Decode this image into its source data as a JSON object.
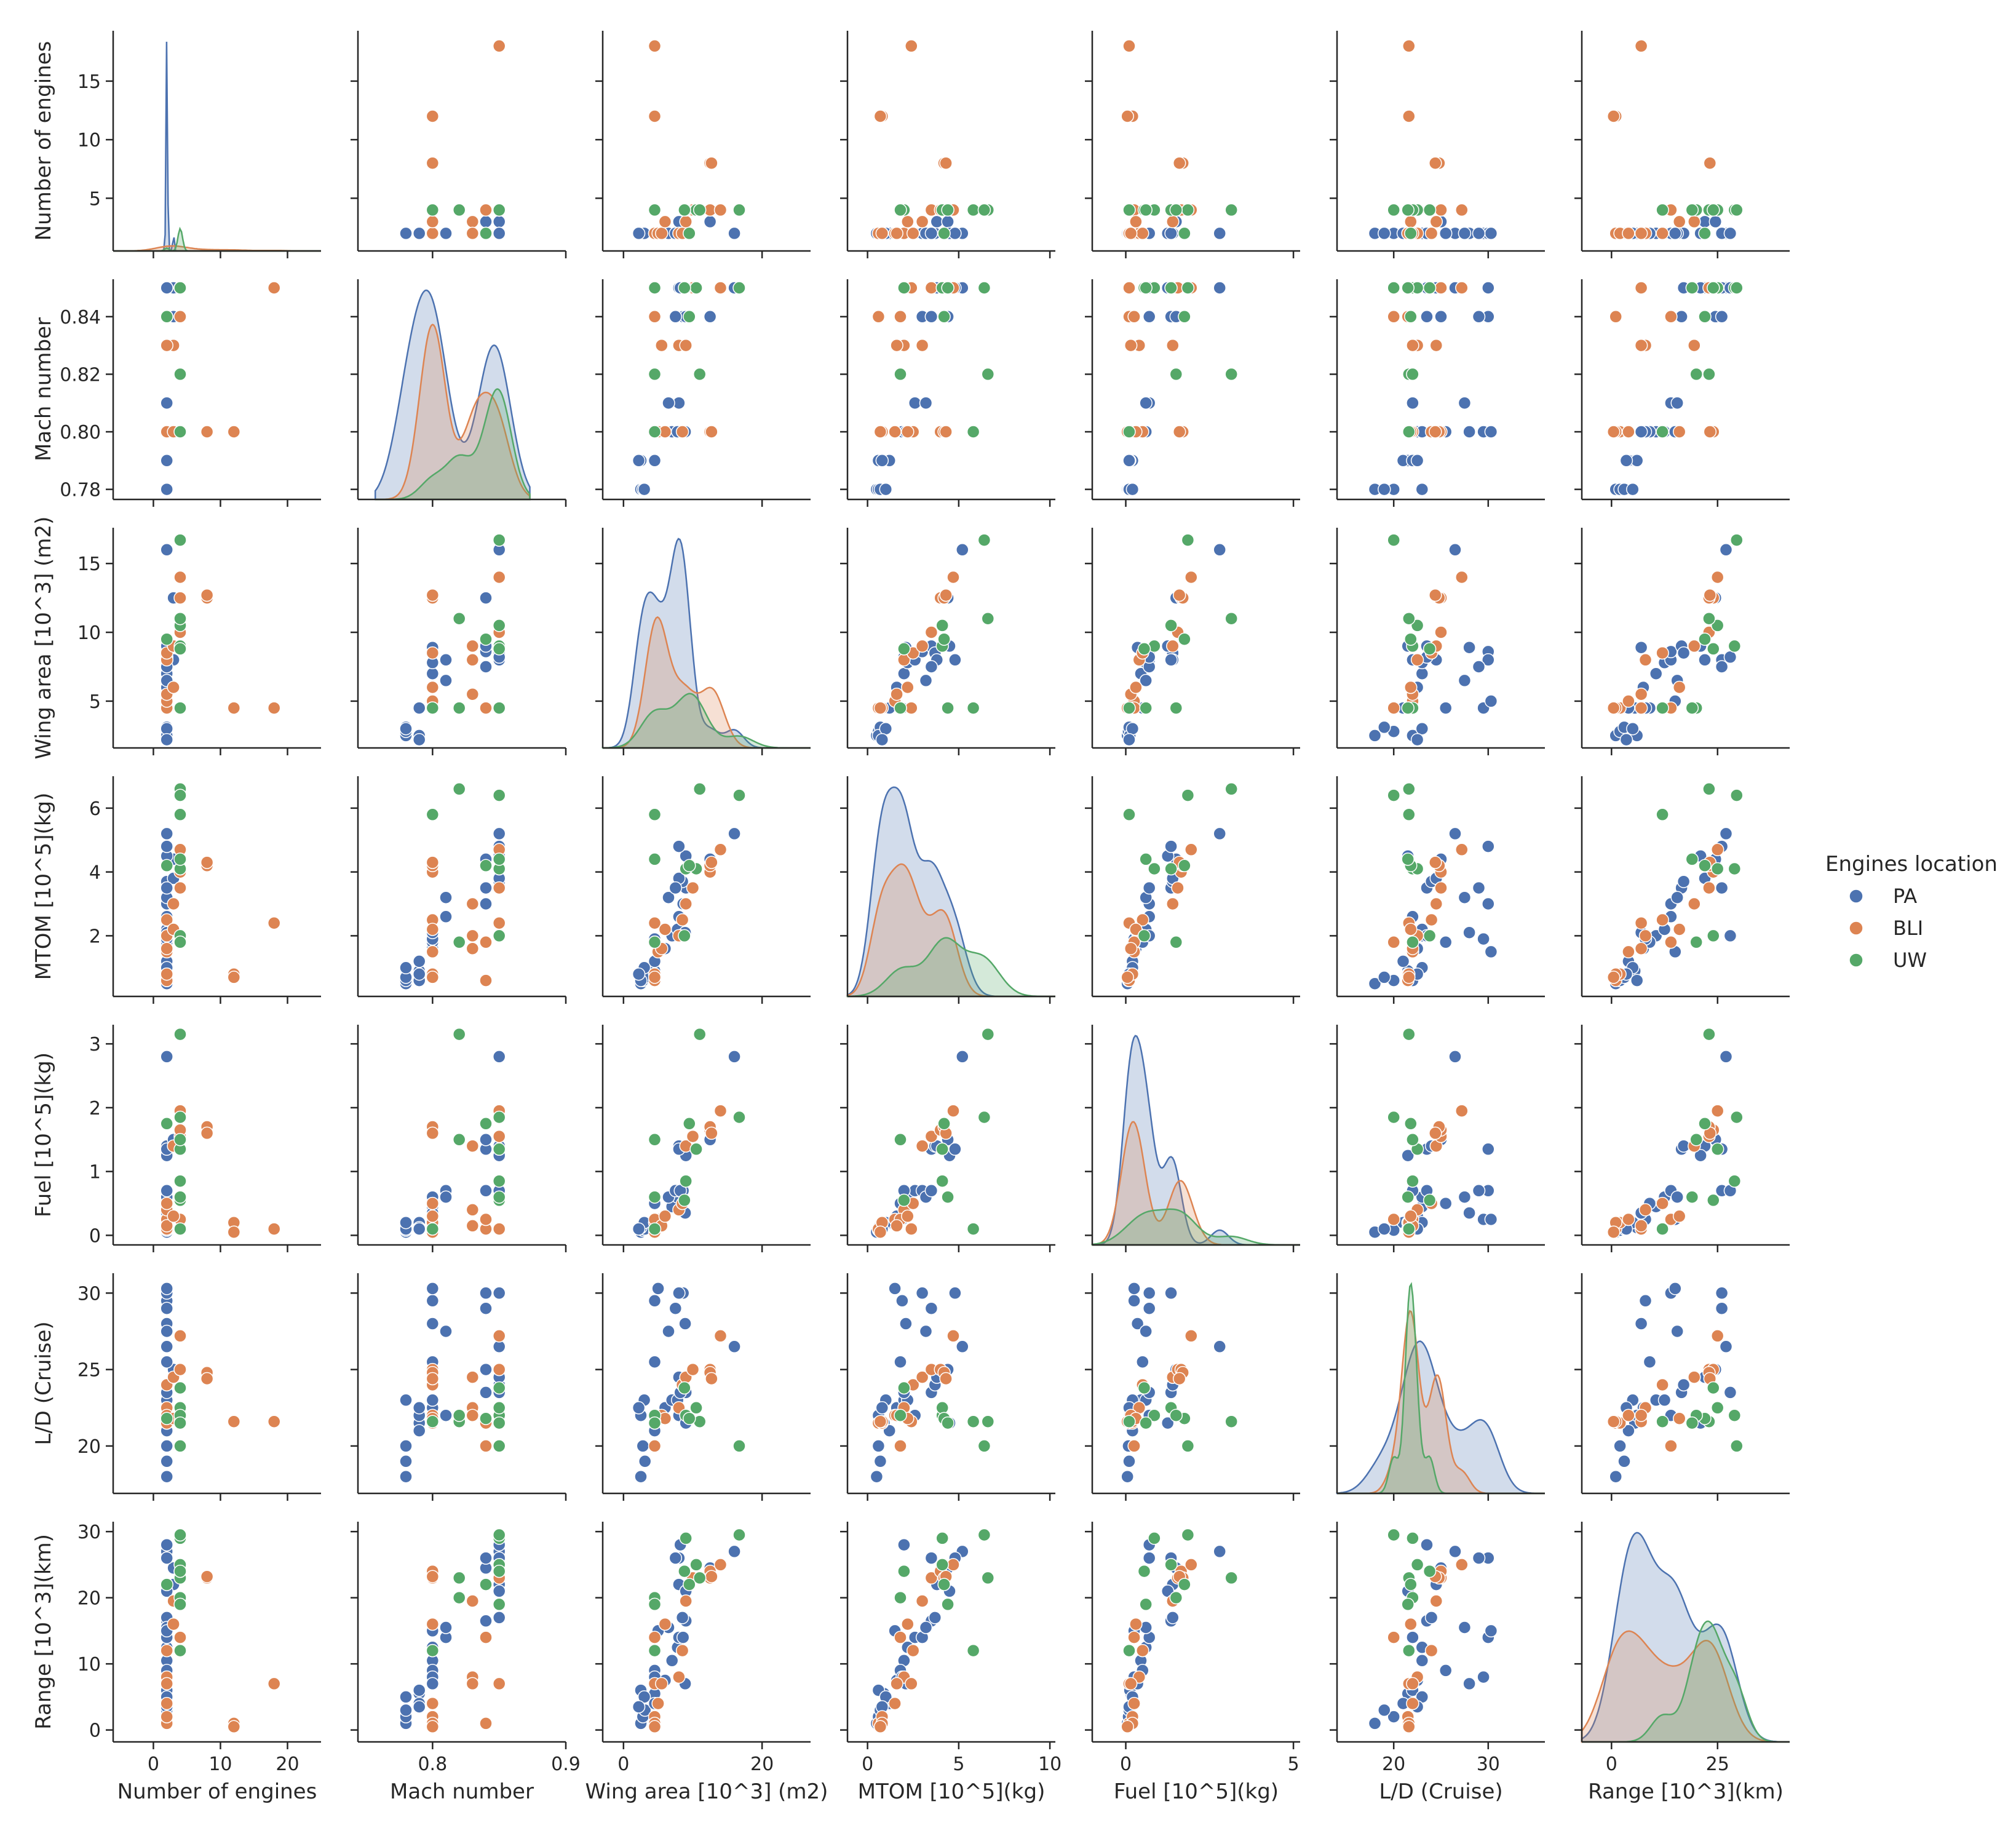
{
  "chart_data": {
    "type": "scatter",
    "title": "",
    "variables": [
      {
        "key": "engines",
        "label": "Number of engines",
        "range": [
          -6,
          25
        ],
        "ticks": [
          0,
          10,
          20
        ],
        "tick_labels": [
          "0",
          "10",
          "20"
        ],
        "kde_range": [
          -6,
          25
        ]
      },
      {
        "key": "mach",
        "label": "Mach number",
        "range": [
          0.744,
          0.9
        ],
        "ticks": [
          0.8,
          0.9
        ],
        "tick_labels": [
          "0.8",
          "0.9"
        ],
        "kde_range": [
          0.757,
          0.873
        ]
      },
      {
        "key": "wing",
        "label": "Wing area [10^3] (m2)",
        "range": [
          -3,
          27
        ],
        "ticks": [
          0,
          20
        ],
        "tick_labels": [
          "0",
          "20"
        ],
        "kde_range": [
          -3,
          27
        ]
      },
      {
        "key": "mtom",
        "label": "MTOM [10^5](kg)",
        "range": [
          -1.1,
          10.3
        ],
        "ticks": [
          0,
          5,
          10
        ],
        "tick_labels": [
          "0",
          "5",
          "10"
        ],
        "kde_range": [
          -1.1,
          10.3
        ]
      },
      {
        "key": "fuel",
        "label": "Fuel [10^5](kg)",
        "range": [
          -1.0,
          5.2
        ],
        "ticks": [
          0,
          5
        ],
        "tick_labels": [
          "0",
          "5"
        ],
        "kde_range": [
          -1.0,
          5.2
        ]
      },
      {
        "key": "ld",
        "label": "L/D (Cruise)",
        "range": [
          14,
          36
        ],
        "ticks": [
          20,
          30
        ],
        "tick_labels": [
          "20",
          "30"
        ],
        "kde_range": [
          14,
          36
        ]
      },
      {
        "key": "range",
        "label": "Range [10^3](km)",
        "range": [
          -7,
          42
        ],
        "ticks": [
          0,
          25
        ],
        "tick_labels": [
          "0",
          "25"
        ],
        "kde_range": [
          -7,
          42
        ]
      }
    ],
    "yaxes": [
      {
        "range": [
          0.5,
          19.3
        ],
        "ticks": [
          5,
          10,
          15
        ],
        "tick_labels": [
          "5",
          "10",
          "15"
        ]
      },
      {
        "range": [
          0.7765,
          0.853
        ],
        "ticks": [
          0.78,
          0.8,
          0.82,
          0.84
        ],
        "tick_labels": [
          "0.78",
          "0.80",
          "0.82",
          "0.84"
        ]
      },
      {
        "range": [
          1.6,
          17.6
        ],
        "ticks": [
          5,
          10,
          15
        ],
        "tick_labels": [
          "5",
          "10",
          "15"
        ]
      },
      {
        "range": [
          0.1,
          7.0
        ],
        "ticks": [
          2,
          4,
          6
        ],
        "tick_labels": [
          "2",
          "4",
          "6"
        ]
      },
      {
        "range": [
          -0.15,
          3.3
        ],
        "ticks": [
          0,
          1,
          2,
          3
        ],
        "tick_labels": [
          "0",
          "1",
          "2",
          "3"
        ]
      },
      {
        "range": [
          16.9,
          31.3
        ],
        "ticks": [
          20,
          25,
          30
        ],
        "tick_labels": [
          "20",
          "25",
          "30"
        ]
      },
      {
        "range": [
          -1.8,
          31.5
        ],
        "ticks": [
          0,
          10,
          20,
          30
        ],
        "tick_labels": [
          "0",
          "10",
          "20",
          "30"
        ]
      }
    ],
    "hue": {
      "title": "Engines location",
      "categories": [
        "PA",
        "BLI",
        "UW"
      ],
      "colors": [
        "#4c72b0",
        "#dd8452",
        "#55a868"
      ]
    },
    "legend_position": "center-right",
    "series": [
      {
        "name": "PA",
        "points": [
          [
            2,
            0.78,
            2.5,
            0.5,
            0.05,
            18.0,
            1.0
          ],
          [
            2,
            0.78,
            2.8,
            0.6,
            0.08,
            20.0,
            2.0
          ],
          [
            2,
            0.78,
            3.1,
            0.7,
            0.1,
            19.0,
            3.0
          ],
          [
            2,
            0.79,
            4.5,
            0.9,
            0.15,
            21.5,
            5.5
          ],
          [
            2,
            0.79,
            4.5,
            1.2,
            0.2,
            21.0,
            4.0
          ],
          [
            2,
            0.8,
            6.0,
            1.6,
            0.3,
            22.5,
            7.5
          ],
          [
            2,
            0.8,
            7.0,
            2.0,
            0.45,
            23.0,
            10.5
          ],
          [
            2,
            0.8,
            7.8,
            2.2,
            0.6,
            23.0,
            12.5
          ],
          [
            2,
            0.81,
            8.0,
            2.6,
            0.7,
            22.0,
            14.0
          ],
          [
            2,
            0.84,
            8.6,
            3.0,
            0.7,
            30.0,
            14.0
          ],
          [
            2,
            0.84,
            9.0,
            3.5,
            1.35,
            23.5,
            16.5
          ],
          [
            2,
            0.85,
            8.5,
            3.7,
            1.4,
            24.0,
            17.0
          ],
          [
            3,
            0.85,
            8.0,
            3.8,
            1.4,
            24.5,
            22.0
          ],
          [
            3,
            0.84,
            12.5,
            4.4,
            1.5,
            25.0,
            24.5
          ],
          [
            2,
            0.85,
            16.0,
            5.2,
            2.8,
            26.5,
            27.0
          ],
          [
            2,
            0.79,
            2.5,
            0.6,
            0.12,
            22.0,
            6.0
          ],
          [
            2,
            0.8,
            4.5,
            1.8,
            0.5,
            25.5,
            9.0
          ],
          [
            2,
            0.8,
            4.5,
            1.9,
            0.25,
            29.5,
            8.0
          ],
          [
            2,
            0.8,
            8.9,
            2.1,
            0.35,
            28.0,
            7.0
          ],
          [
            2,
            0.85,
            9.0,
            4.5,
            1.25,
            21.5,
            21.0
          ],
          [
            2,
            0.85,
            8.0,
            4.8,
            1.35,
            30.0,
            26.0
          ],
          [
            2,
            0.81,
            6.5,
            3.2,
            0.6,
            27.5,
            15.5
          ],
          [
            2,
            0.78,
            3.0,
            1.0,
            0.2,
            23.0,
            5.0
          ],
          [
            2,
            0.8,
            5.0,
            1.5,
            0.25,
            30.3,
            15.0
          ],
          [
            2,
            0.84,
            7.5,
            3.5,
            0.7,
            29.0,
            26.0
          ],
          [
            2,
            0.79,
            2.2,
            0.8,
            0.1,
            22.5,
            3.5
          ],
          [
            2,
            0.85,
            8.2,
            2.0,
            0.7,
            23.5,
            28.0
          ]
        ]
      },
      {
        "name": "BLI",
        "points": [
          [
            2,
            0.84,
            4.5,
            0.6,
            0.1,
            21.5,
            1.0
          ],
          [
            2,
            0.8,
            4.5,
            0.8,
            0.2,
            21.5,
            2.0
          ],
          [
            2,
            0.8,
            5.0,
            1.5,
            0.25,
            22.0,
            4.0
          ],
          [
            2,
            0.83,
            8.0,
            2.0,
            0.4,
            22.5,
            8.0
          ],
          [
            2,
            0.8,
            8.5,
            2.5,
            0.5,
            24.0,
            12.0
          ],
          [
            3,
            0.83,
            9.0,
            3.0,
            1.4,
            24.5,
            19.5
          ],
          [
            4,
            0.85,
            10.0,
            3.5,
            1.55,
            25.0,
            23.0
          ],
          [
            4,
            0.8,
            12.5,
            4.0,
            1.65,
            25.0,
            24.0
          ],
          [
            4,
            0.85,
            14.0,
            4.7,
            1.95,
            27.2,
            25.0
          ],
          [
            8,
            0.8,
            12.5,
            4.2,
            1.7,
            24.8,
            23.0
          ],
          [
            8,
            0.8,
            12.7,
            4.3,
            1.6,
            24.4,
            23.2
          ],
          [
            12,
            0.8,
            4.5,
            0.8,
            0.2,
            21.6,
            1.0
          ],
          [
            12,
            0.8,
            4.5,
            0.7,
            0.05,
            21.6,
            0.5
          ],
          [
            18,
            0.85,
            4.5,
            2.4,
            0.1,
            21.6,
            7.0
          ],
          [
            4,
            0.84,
            4.5,
            1.8,
            0.25,
            20.0,
            14.0
          ],
          [
            2,
            0.83,
            5.5,
            1.6,
            0.15,
            22.0,
            7.0
          ],
          [
            3,
            0.8,
            6.0,
            2.2,
            0.3,
            21.8,
            16.0
          ]
        ]
      },
      {
        "name": "UW",
        "points": [
          [
            4,
            0.8,
            4.5,
            5.8,
            0.1,
            21.6,
            12.0
          ],
          [
            4,
            0.85,
            9.0,
            4.1,
            0.85,
            22.0,
            29.0
          ],
          [
            4,
            0.85,
            10.5,
            4.1,
            1.35,
            22.5,
            25.0
          ],
          [
            4,
            0.82,
            11.0,
            6.6,
            3.15,
            21.6,
            23.0
          ],
          [
            4,
            0.85,
            16.7,
            6.4,
            1.85,
            20.0,
            29.5
          ],
          [
            2,
            0.84,
            9.5,
            4.2,
            1.75,
            21.8,
            22.0
          ],
          [
            4,
            0.85,
            8.8,
            2.0,
            0.55,
            23.8,
            24.0
          ],
          [
            4,
            0.82,
            4.5,
            1.8,
            1.5,
            22.0,
            20.0
          ],
          [
            4,
            0.85,
            4.5,
            4.4,
            0.6,
            21.5,
            19.0
          ]
        ]
      }
    ]
  }
}
